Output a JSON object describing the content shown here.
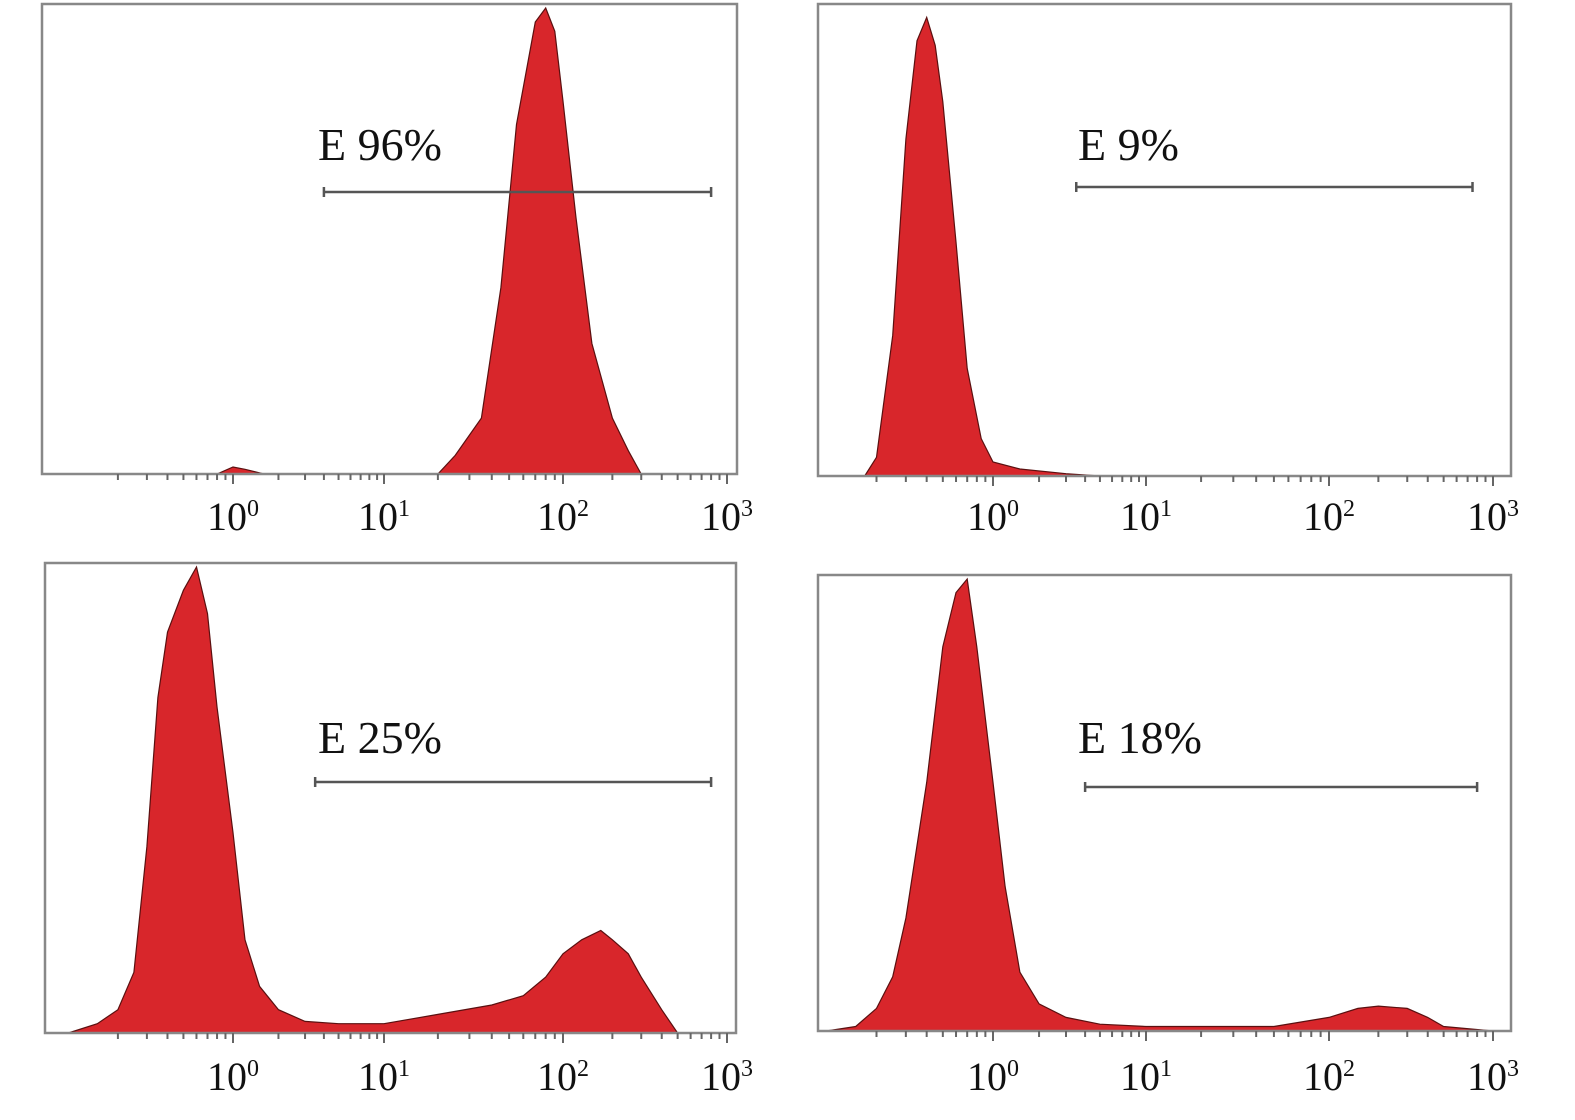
{
  "chart_data": [
    {
      "type": "area",
      "panel": "top-left",
      "x_scale": "log",
      "xlim": [
        0.1,
        1000
      ],
      "x_ticks": [
        1,
        10,
        100,
        1000
      ],
      "tick_labels": [
        {
          "base": "10",
          "exp": "0"
        },
        {
          "base": "10",
          "exp": "1"
        },
        {
          "base": "10",
          "exp": "2"
        },
        {
          "base": "10",
          "exp": "3"
        }
      ],
      "gate_label": "E 96%",
      "gate_range": [
        4,
        800
      ],
      "fill_color": "#d8262b",
      "series": [
        {
          "x": [
            0.1,
            0.8,
            1.0,
            1.2,
            1.6,
            5,
            20,
            25,
            35,
            45,
            55,
            70,
            80,
            90,
            100,
            120,
            150,
            200,
            250,
            300,
            1000
          ],
          "y": [
            0,
            0,
            0.015,
            0.01,
            0,
            0,
            0,
            0.04,
            0.12,
            0.4,
            0.75,
            0.97,
            1.0,
            0.95,
            0.8,
            0.55,
            0.28,
            0.12,
            0.05,
            0,
            0
          ]
        }
      ]
    },
    {
      "type": "area",
      "panel": "top-right",
      "x_scale": "log",
      "xlim": [
        0.1,
        1000
      ],
      "x_ticks": [
        1,
        10,
        100,
        1000
      ],
      "tick_labels": [
        {
          "base": "10",
          "exp": "0"
        },
        {
          "base": "10",
          "exp": "1"
        },
        {
          "base": "10",
          "exp": "2"
        },
        {
          "base": "10",
          "exp": "3"
        }
      ],
      "gate_label": "E 9%",
      "gate_range": [
        3.5,
        750
      ],
      "fill_color": "#d8262b",
      "series": [
        {
          "x": [
            0.1,
            0.17,
            0.2,
            0.25,
            0.3,
            0.35,
            0.4,
            0.45,
            0.5,
            0.6,
            0.7,
            0.85,
            1.0,
            1.5,
            3,
            5,
            1000
          ],
          "y": [
            0,
            0,
            0.04,
            0.3,
            0.72,
            0.93,
            0.98,
            0.92,
            0.8,
            0.5,
            0.23,
            0.08,
            0.03,
            0.015,
            0.005,
            0,
            0
          ]
        }
      ]
    },
    {
      "type": "area",
      "panel": "bottom-left",
      "x_scale": "log",
      "xlim": [
        0.1,
        1000
      ],
      "x_ticks": [
        1,
        10,
        100,
        1000
      ],
      "tick_labels": [
        {
          "base": "10",
          "exp": "0"
        },
        {
          "base": "10",
          "exp": "1"
        },
        {
          "base": "10",
          "exp": "2"
        },
        {
          "base": "10",
          "exp": "3"
        }
      ],
      "gate_label": "E 25%",
      "gate_range": [
        3.5,
        800
      ],
      "fill_color": "#d8262b",
      "series": [
        {
          "x": [
            0.1,
            0.15,
            0.2,
            0.25,
            0.3,
            0.35,
            0.4,
            0.5,
            0.6,
            0.7,
            0.8,
            1.0,
            1.2,
            1.5,
            2,
            3,
            5,
            10,
            20,
            40,
            60,
            80,
            100,
            130,
            170,
            200,
            250,
            300,
            400,
            500,
            1000
          ],
          "y": [
            0,
            0.02,
            0.05,
            0.13,
            0.4,
            0.72,
            0.86,
            0.95,
            1.0,
            0.9,
            0.7,
            0.43,
            0.2,
            0.1,
            0.05,
            0.025,
            0.02,
            0.02,
            0.04,
            0.06,
            0.08,
            0.12,
            0.17,
            0.2,
            0.22,
            0.2,
            0.17,
            0.12,
            0.05,
            0,
            0
          ]
        }
      ]
    },
    {
      "type": "area",
      "panel": "bottom-right",
      "x_scale": "log",
      "xlim": [
        0.1,
        1000
      ],
      "x_ticks": [
        1,
        10,
        100,
        1000
      ],
      "tick_labels": [
        {
          "base": "10",
          "exp": "0"
        },
        {
          "base": "10",
          "exp": "1"
        },
        {
          "base": "10",
          "exp": "2"
        },
        {
          "base": "10",
          "exp": "3"
        }
      ],
      "gate_label": "E 18%",
      "gate_range": [
        4,
        800
      ],
      "fill_color": "#d8262b",
      "series": [
        {
          "x": [
            0.1,
            0.15,
            0.2,
            0.25,
            0.3,
            0.4,
            0.5,
            0.6,
            0.7,
            0.8,
            1.0,
            1.2,
            1.5,
            2,
            3,
            5,
            10,
            20,
            50,
            100,
            150,
            200,
            300,
            400,
            500,
            1000
          ],
          "y": [
            0,
            0.01,
            0.05,
            0.12,
            0.25,
            0.55,
            0.85,
            0.97,
            1.0,
            0.85,
            0.55,
            0.32,
            0.13,
            0.06,
            0.03,
            0.015,
            0.01,
            0.01,
            0.01,
            0.03,
            0.05,
            0.055,
            0.05,
            0.03,
            0.01,
            0
          ]
        }
      ]
    }
  ]
}
